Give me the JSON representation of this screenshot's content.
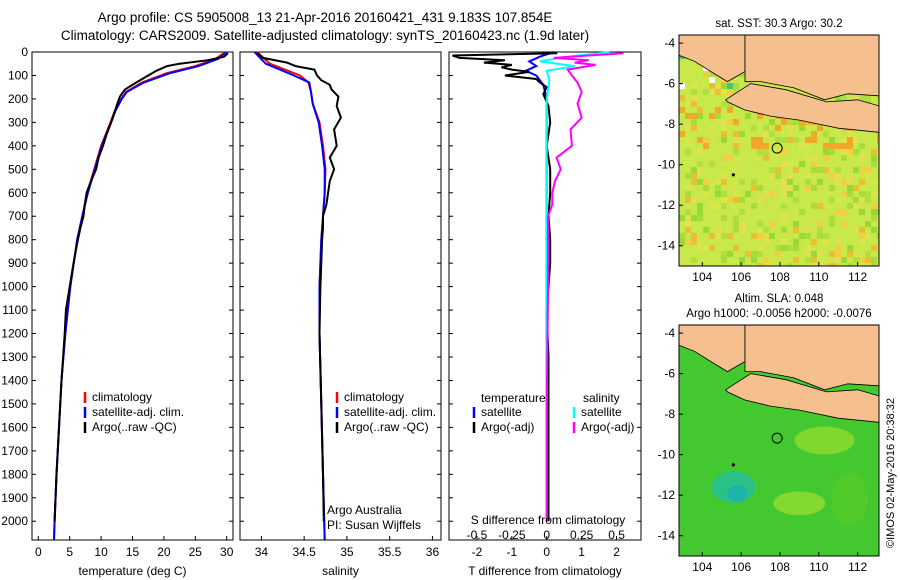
{
  "header": {
    "line1": "Argo profile: CS 5905008_13 21-Apr-2016 20160421_431 9.183S 107.854E",
    "line2": "Climatology: CARS2009. Satellite-adjusted climatology: synTS_20160423.nc (1.9d later)"
  },
  "colors": {
    "climatology": "#ff0000",
    "satellite": "#0000ff",
    "argo": "#000000",
    "sal_satellite": "#00ffff",
    "sal_argo": "#ff00ff"
  },
  "chart_data": [
    {
      "type": "line",
      "id": "temperature-profile",
      "xlabel": "temperature (deg C)",
      "ylabel": "",
      "xlim": [
        -1,
        31
      ],
      "ylim": [
        0,
        2080
      ],
      "xticks": [
        0,
        5,
        10,
        15,
        20,
        25,
        30
      ],
      "yticks": [
        0,
        100,
        200,
        300,
        400,
        500,
        600,
        700,
        800,
        900,
        1000,
        1100,
        1200,
        1300,
        1400,
        1500,
        1600,
        1700,
        1800,
        1900,
        2000
      ],
      "legend": [
        "climatology",
        "satellite-adj. clim.",
        "Argo(..raw -QC)"
      ],
      "series": [
        {
          "name": "climatology",
          "depth": [
            0,
            30,
            60,
            90,
            130,
            170,
            200,
            250,
            300,
            400,
            500,
            600,
            700,
            800,
            1000,
            1200,
            1400,
            1600,
            1800,
            2000,
            2080
          ],
          "values": [
            29.8,
            28.2,
            25.0,
            20.5,
            16.5,
            14.0,
            13.2,
            12.2,
            11.5,
            10.0,
            8.9,
            7.8,
            7.0,
            6.2,
            5.1,
            4.3,
            3.7,
            3.3,
            2.9,
            2.6,
            2.5
          ]
        },
        {
          "name": "satellite-adj. clim.",
          "depth": [
            0,
            30,
            60,
            90,
            130,
            170,
            200,
            250,
            300,
            400,
            500,
            600,
            700,
            800,
            1000,
            1200,
            1400,
            1600,
            1800,
            2000,
            2080
          ],
          "values": [
            30.0,
            28.6,
            25.5,
            21.0,
            16.8,
            14.1,
            13.3,
            12.3,
            11.6,
            10.1,
            9.0,
            7.9,
            7.0,
            6.2,
            5.1,
            4.3,
            3.7,
            3.3,
            2.9,
            2.6,
            2.5
          ]
        },
        {
          "name": "Argo(..raw -QC)",
          "depth": [
            5,
            20,
            35,
            50,
            60,
            80,
            100,
            130,
            160,
            190,
            220,
            260,
            300,
            350,
            400,
            450,
            500,
            550,
            600,
            650,
            700,
            750,
            800,
            900,
            1000,
            1100,
            1200,
            1400,
            1600,
            1800,
            2000
          ],
          "values": [
            30.2,
            29.6,
            27.0,
            22.5,
            20.5,
            18.8,
            17.5,
            15.6,
            13.8,
            13.0,
            12.6,
            12.1,
            11.6,
            10.9,
            10.3,
            9.6,
            9.2,
            8.4,
            7.7,
            7.4,
            7.2,
            6.7,
            6.3,
            5.6,
            5.0,
            4.4,
            4.2,
            3.7,
            3.3,
            2.9,
            2.6
          ]
        }
      ]
    },
    {
      "type": "line",
      "id": "salinity-profile",
      "xlabel": "salinity",
      "xlim": [
        33.75,
        36.1
      ],
      "ylim": [
        0,
        2080
      ],
      "xticks": [
        34,
        34.5,
        35,
        35.5,
        36
      ],
      "legend": [
        "climatology",
        "satellite-adj. clim.",
        "Argo(..raw -QC)"
      ],
      "annotation": [
        "Argo Australia",
        "PI: Susan Wijffels"
      ],
      "series": [
        {
          "name": "climatology",
          "depth": [
            0,
            50,
            100,
            130,
            170,
            220,
            300,
            400,
            500,
            600,
            700,
            800,
            1000,
            1200,
            1500,
            1800,
            2080
          ],
          "values": [
            33.95,
            34.1,
            34.45,
            34.55,
            34.58,
            34.6,
            34.68,
            34.72,
            34.75,
            34.74,
            34.72,
            34.7,
            34.68,
            34.68,
            34.7,
            34.72,
            34.74
          ]
        },
        {
          "name": "satellite-adj. clim.",
          "depth": [
            0,
            50,
            100,
            130,
            170,
            220,
            300,
            400,
            500,
            600,
            700,
            800,
            1000,
            1200,
            1500,
            1800,
            2080
          ],
          "values": [
            33.92,
            34.05,
            34.38,
            34.56,
            34.58,
            34.6,
            34.67,
            34.71,
            34.74,
            34.74,
            34.72,
            34.7,
            34.68,
            34.68,
            34.7,
            34.72,
            34.74
          ]
        },
        {
          "name": "Argo(..raw -QC)",
          "depth": [
            5,
            25,
            45,
            60,
            75,
            100,
            120,
            140,
            160,
            190,
            230,
            280,
            330,
            400,
            450,
            500,
            550,
            600,
            650,
            700,
            750,
            800,
            900,
            1000,
            1200,
            1500,
            1800,
            2000
          ],
          "values": [
            33.95,
            34.02,
            34.3,
            34.4,
            34.62,
            34.65,
            34.7,
            34.8,
            34.82,
            34.9,
            34.88,
            34.93,
            34.85,
            34.88,
            34.8,
            34.85,
            34.8,
            34.78,
            34.76,
            34.72,
            34.72,
            34.71,
            34.7,
            34.69,
            34.68,
            34.7,
            34.72,
            34.73
          ]
        }
      ]
    },
    {
      "type": "line",
      "id": "difference-profile",
      "xlabel": "T difference from climatology",
      "top_axis_label": "S difference from climatology",
      "xlim": [
        -2.8,
        2.7
      ],
      "ylim": [
        0,
        2080
      ],
      "xticks": [
        -2,
        -1,
        0,
        1,
        2
      ],
      "top_ticks_values": [
        -0.5,
        -0.25,
        0,
        0.25,
        0.5
      ],
      "top_ticks_labels": [
        "-0.5",
        "-0.25",
        "0",
        "0.25",
        "0.5"
      ],
      "legend_temperature_title": "temperature",
      "legend_salinity_title": "salinity",
      "legend": [
        "satellite",
        "Argo(-adj)",
        "satellite",
        "Argo(-adj)"
      ],
      "series": [
        {
          "name": "temperature satellite",
          "depth": [
            0,
            20,
            40,
            60,
            80,
            100,
            140,
            200,
            400,
            1000,
            2000
          ],
          "values": [
            0.2,
            -0.2,
            -0.5,
            -0.3,
            -0.6,
            -0.3,
            -0.1,
            0.0,
            0.0,
            0.0,
            0.0
          ]
        },
        {
          "name": "temperature Argo(-adj)",
          "depth": [
            5,
            15,
            25,
            35,
            45,
            55,
            65,
            75,
            85,
            100,
            115,
            130,
            150,
            180,
            230,
            300,
            400,
            500,
            600,
            700,
            800,
            900,
            1100,
            1300,
            1500,
            1800,
            2000
          ],
          "values": [
            0.3,
            -2.7,
            -2.5,
            -1.2,
            -1.8,
            -1.0,
            -1.3,
            -1.0,
            -0.5,
            -1.2,
            -0.3,
            -0.2,
            0.0,
            -0.1,
            0.05,
            0.1,
            0.0,
            0.1,
            0.1,
            0.05,
            0.1,
            0.1,
            0.0,
            0.05,
            0.05,
            0.05,
            0.05
          ]
        },
        {
          "name": "salinity satellite",
          "depth": [
            0,
            20,
            40,
            60,
            80,
            120,
            200,
            400,
            700,
            1000,
            1500,
            2000
          ],
          "values": [
            0.45,
            0.15,
            -0.05,
            0.2,
            0.0,
            0.02,
            0.0,
            0.0,
            0.0,
            0.0,
            0.0,
            0.0
          ]
        },
        {
          "name": "salinity Argo(-adj)",
          "depth": [
            5,
            15,
            25,
            35,
            45,
            55,
            75,
            100,
            130,
            170,
            220,
            280,
            330,
            400,
            450,
            500,
            550,
            600,
            650,
            700,
            800,
            1000,
            1500,
            2000
          ],
          "values": [
            0.55,
            0.3,
            0.05,
            0.3,
            0.2,
            0.35,
            0.15,
            0.18,
            0.22,
            0.25,
            0.22,
            0.25,
            0.17,
            0.18,
            0.07,
            0.1,
            0.06,
            0.04,
            0.04,
            0.01,
            0.01,
            0.01,
            0.0,
            0.0
          ]
        }
      ]
    },
    {
      "type": "heatmap",
      "id": "sst-map",
      "title": "sat. SST: 30.3 Argo: 30.2",
      "xlim": [
        102.8,
        113.1
      ],
      "ylim": [
        -15.0,
        -3.6
      ],
      "xticks": [
        104,
        106,
        108,
        110,
        112
      ],
      "yticks": [
        -4,
        -6,
        -8,
        -10,
        -12,
        -14
      ],
      "marker": {
        "lon": 107.854,
        "lat": -9.183
      }
    },
    {
      "type": "heatmap",
      "id": "sla-map",
      "title_line1": "Altim. SLA: 0.048",
      "title_line2": "Argo h1000: -0.0056 h2000: -0.0076",
      "xlim": [
        102.8,
        113.1
      ],
      "ylim": [
        -15.0,
        -3.6
      ],
      "xticks": [
        104,
        106,
        108,
        110,
        112
      ],
      "yticks": [
        -4,
        -6,
        -8,
        -10,
        -12,
        -14
      ],
      "marker": {
        "lon": 107.854,
        "lat": -9.183
      }
    }
  ],
  "footer": {
    "credit": "©IMOS 02-May-2016 20:38:32"
  }
}
